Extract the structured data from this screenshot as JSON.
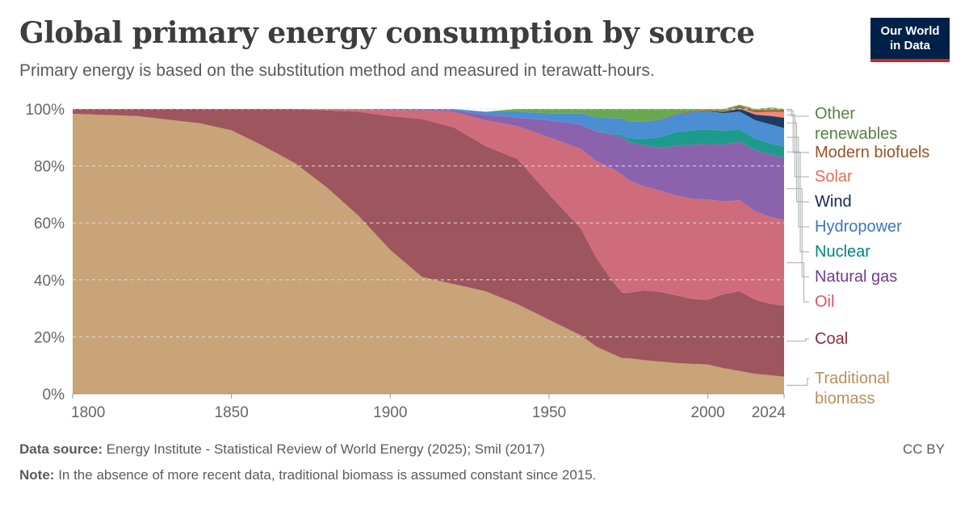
{
  "header": {
    "title": "Global primary energy consumption by source",
    "subtitle": "Primary energy is based on the substitution method and measured in terawatt-hours.",
    "logo_line1": "Our World",
    "logo_line2": "in Data"
  },
  "footer": {
    "source_label": "Data source:",
    "source_text": "Energy Institute - Statistical Review of World Energy (2025); Smil (2017)",
    "note_label": "Note:",
    "note_text": "In the absence of more recent data, traditional biomass is assumed constant since 2015.",
    "license": "CC BY"
  },
  "chart_data": {
    "type": "area",
    "stacked": true,
    "normalized_percent": true,
    "title": "Global primary energy consumption by source",
    "xlabel": "",
    "ylabel": "",
    "xlim": [
      1800,
      2024
    ],
    "ylim": [
      0,
      100
    ],
    "x_ticks": [
      "1800",
      "1850",
      "1900",
      "1950",
      "2000",
      "2024"
    ],
    "y_ticks": [
      "0%",
      "20%",
      "40%",
      "60%",
      "80%",
      "100%"
    ],
    "x": [
      1800,
      1820,
      1840,
      1850,
      1860,
      1870,
      1880,
      1890,
      1900,
      1910,
      1920,
      1930,
      1940,
      1950,
      1960,
      1965,
      1970,
      1973,
      1975,
      1980,
      1985,
      1990,
      1995,
      2000,
      2005,
      2010,
      2015,
      2020,
      2024
    ],
    "series": [
      {
        "name": "Traditional biomass",
        "color": "#c8a478",
        "label_color": "#b8905c",
        "values": [
          98.3,
          97.5,
          95.0,
          92.5,
          87.0,
          81.0,
          72.5,
          62.5,
          50.5,
          41.0,
          38.5,
          36.0,
          31.5,
          26.0,
          20.5,
          16.5,
          14.0,
          12.5,
          12.5,
          11.8,
          11.3,
          10.8,
          10.5,
          10.3,
          9.0,
          8.0,
          7.0,
          6.5,
          6.0
        ]
      },
      {
        "name": "Coal",
        "color": "#9e565e",
        "label_color": "#883039",
        "values": [
          1.7,
          2.5,
          5.0,
          7.5,
          13.0,
          19.0,
          27.0,
          36.5,
          47.0,
          55.5,
          55.0,
          51.0,
          51.0,
          44.0,
          37.5,
          31.0,
          25.5,
          23.0,
          23.0,
          24.5,
          24.5,
          23.8,
          22.8,
          22.7,
          26.0,
          28.0,
          26.0,
          25.0,
          25.0
        ]
      },
      {
        "name": "Oil",
        "color": "#cf6c7b",
        "label_color": "#d7546b",
        "values": [
          0,
          0,
          0,
          0,
          0,
          0,
          0.5,
          1.0,
          2.0,
          3.0,
          5.5,
          9.0,
          11.5,
          20.0,
          28.0,
          34.0,
          39.5,
          41.5,
          39.5,
          36.5,
          35.5,
          35.0,
          35.2,
          35.2,
          32.5,
          32.0,
          31.0,
          30.5,
          30.0
        ]
      },
      {
        "name": "Natural gas",
        "color": "#8b63ad",
        "label_color": "#6d3e91",
        "values": [
          0,
          0,
          0,
          0,
          0,
          0,
          0,
          0,
          0.5,
          0.5,
          0.5,
          2.0,
          3.0,
          6.0,
          8.5,
          10.5,
          12.0,
          13.0,
          13.5,
          14.5,
          15.0,
          17.5,
          19.0,
          19.5,
          20.0,
          20.5,
          21.5,
          22.0,
          22.0
        ]
      },
      {
        "name": "Nuclear",
        "color": "#1e9a8c",
        "label_color": "#00847e",
        "values": [
          0,
          0,
          0,
          0,
          0,
          0,
          0,
          0,
          0,
          0,
          0,
          0,
          0,
          0,
          0,
          0.1,
          0.3,
          0.8,
          1.2,
          2.2,
          3.8,
          4.8,
          5.0,
          5.2,
          4.8,
          4.3,
          4.0,
          3.8,
          3.8
        ]
      },
      {
        "name": "Hydropower",
        "color": "#4c8ed3",
        "label_color": "#3b77c0",
        "values": [
          0,
          0,
          0,
          0,
          0,
          0,
          0,
          0,
          0,
          0,
          0.5,
          1.0,
          2.0,
          2.5,
          4.0,
          5.0,
          5.5,
          5.8,
          6.0,
          6.0,
          6.1,
          6.2,
          6.4,
          6.3,
          6.2,
          6.3,
          6.5,
          6.7,
          6.5
        ]
      },
      {
        "name": "Wind",
        "color": "#1e3b63",
        "label_color": "#14284d",
        "values": [
          0,
          0,
          0,
          0,
          0,
          0,
          0,
          0,
          0,
          0,
          0,
          0,
          0,
          0,
          0,
          0,
          0,
          0,
          0,
          0,
          0,
          0,
          0,
          0.1,
          0.4,
          1.0,
          2.0,
          3.0,
          3.6
        ]
      },
      {
        "name": "Solar",
        "color": "#f18a78",
        "label_color": "#e56e5a",
        "values": [
          0,
          0,
          0,
          0,
          0,
          0,
          0,
          0,
          0,
          0,
          0,
          0,
          0,
          0,
          0,
          0,
          0,
          0,
          0,
          0,
          0,
          0,
          0,
          0,
          0,
          0.2,
          0.8,
          1.5,
          2.1
        ]
      },
      {
        "name": "Modern biofuels",
        "color": "#a45f2b",
        "label_color": "#9a5129",
        "values": [
          0,
          0,
          0,
          0,
          0,
          0,
          0,
          0,
          0,
          0,
          0,
          0,
          0,
          0,
          0,
          0,
          0,
          0,
          0,
          0.1,
          0.2,
          0.2,
          0.3,
          0.3,
          0.4,
          0.7,
          0.7,
          0.7,
          0.7
        ]
      },
      {
        "name": "Other renewables",
        "color": "#6aa84f",
        "label_color": "#578145",
        "values": [
          0,
          0,
          0,
          0,
          0,
          0,
          0,
          0,
          0,
          0,
          0,
          0,
          1.0,
          1.5,
          1.5,
          2.9,
          3.2,
          3.4,
          4.3,
          4.4,
          3.6,
          1.7,
          0.8,
          0.4,
          0.7,
          0.5,
          0.5,
          0.8,
          0.3
        ]
      }
    ],
    "legend_position": "right"
  }
}
